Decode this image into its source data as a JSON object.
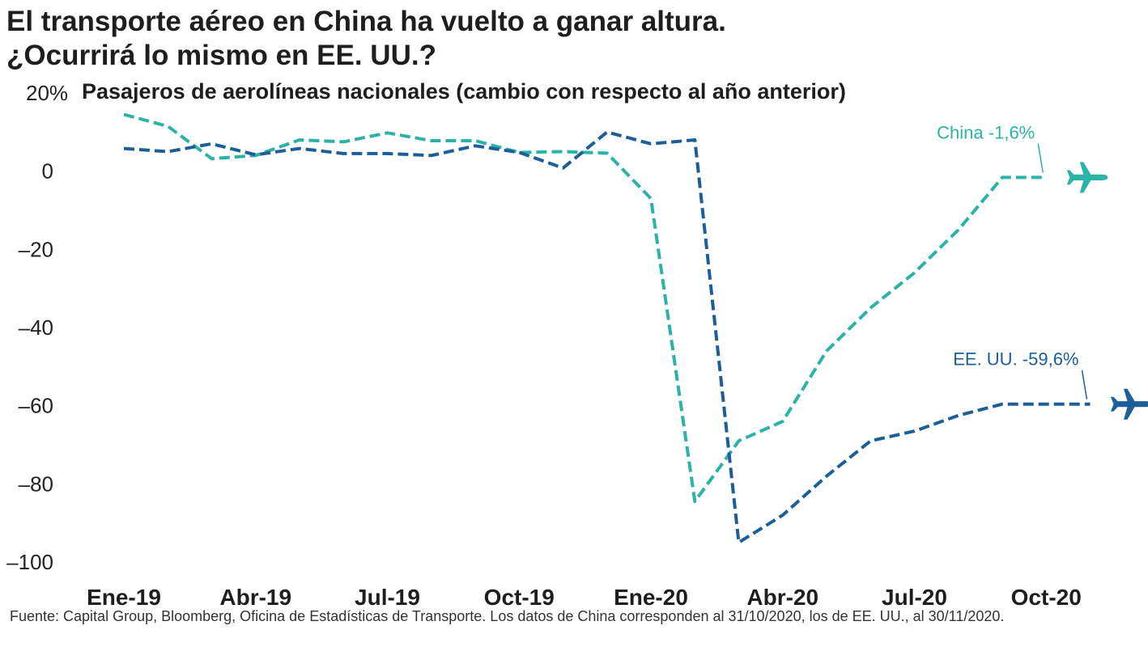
{
  "title": {
    "line1": "El transporte aéreo en China ha vuelto a ganar altura.",
    "line2": "¿Ocurrirá lo mismo en EE. UU.?"
  },
  "source": "Fuente: Capital Group, Bloomberg, Oficina de Estadísticas de Transporte. Los datos de China corresponden al 31/10/2020, los de EE. UU., al 30/11/2020.",
  "colors": {
    "china": "#2bb3a8",
    "us": "#1c5f98"
  },
  "icons": {
    "china": "airplane-icon",
    "us": "airplane-icon"
  },
  "chart_data": {
    "type": "line",
    "subtitle": "Pasajeros de aerolíneas nacionales (cambio con respecto al año anterior)",
    "ylim": [
      -100,
      20
    ],
    "yticks": [
      {
        "value": 20,
        "label": "20%"
      },
      {
        "value": 0,
        "label": "0"
      },
      {
        "value": -20,
        "label": "–20"
      },
      {
        "value": -40,
        "label": "–40"
      },
      {
        "value": -60,
        "label": "–60"
      },
      {
        "value": -80,
        "label": "–80"
      },
      {
        "value": -100,
        "label": "–100"
      }
    ],
    "x": [
      "2019-01",
      "2019-02",
      "2019-03",
      "2019-04",
      "2019-05",
      "2019-06",
      "2019-07",
      "2019-08",
      "2019-09",
      "2019-10",
      "2019-11",
      "2019-12",
      "2020-01",
      "2020-02",
      "2020-03",
      "2020-04",
      "2020-05",
      "2020-06",
      "2020-07",
      "2020-08",
      "2020-09",
      "2020-10",
      "2020-11"
    ],
    "xticks": [
      {
        "x": "2019-01",
        "label": "Ene-19"
      },
      {
        "x": "2019-04",
        "label": "Abr-19"
      },
      {
        "x": "2019-07",
        "label": "Jul-19"
      },
      {
        "x": "2019-10",
        "label": "Oct-19"
      },
      {
        "x": "2020-01",
        "label": "Ene-20"
      },
      {
        "x": "2020-04",
        "label": "Abr-20"
      },
      {
        "x": "2020-07",
        "label": "Jul-20"
      },
      {
        "x": "2020-10",
        "label": "Oct-20"
      }
    ],
    "grid": false,
    "series": [
      {
        "name": "China",
        "color": "#2bb3a8",
        "annotation": "China -1,6%",
        "values": [
          14.5,
          11.5,
          3.2,
          4.0,
          8.0,
          7.5,
          9.8,
          7.8,
          7.8,
          4.8,
          5.0,
          4.6,
          -7.0,
          -84.5,
          -69.0,
          -64.0,
          -46.0,
          -35.0,
          -26.0,
          -15.0,
          -1.6,
          -1.6,
          null
        ]
      },
      {
        "name": "EE. UU.",
        "color": "#1c5f98",
        "annotation": "EE. UU. -59,6%",
        "values": [
          5.8,
          5.0,
          7.0,
          4.2,
          5.8,
          4.5,
          4.5,
          4.0,
          6.5,
          4.8,
          0.8,
          10.0,
          7.0,
          8.0,
          -95.0,
          -88.0,
          -78.0,
          -69.0,
          -66.5,
          -62.5,
          -59.6,
          -59.6,
          -59.6
        ]
      }
    ]
  }
}
